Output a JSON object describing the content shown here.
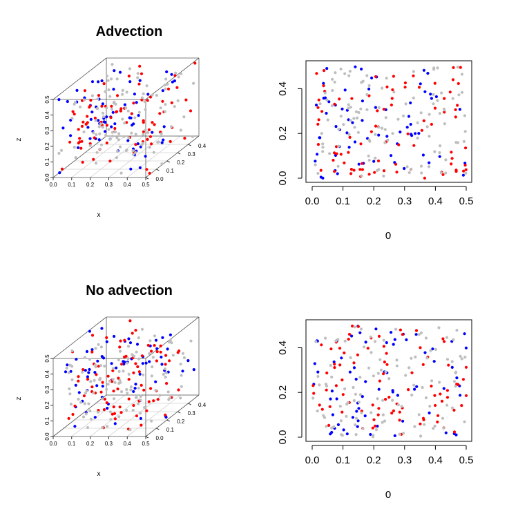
{
  "figure": {
    "colors": {
      "series_a": "#0000ff",
      "series_b": "#ff0000",
      "series_c": "#bebebe",
      "frame": "#000000",
      "box": "#555555",
      "grid": "#d3d3d3"
    }
  },
  "chart_data": [
    {
      "type": "scatter",
      "subtype": "scatter3d",
      "title": "Advection",
      "xlabel": "x",
      "ylabel": "",
      "zlabel": "z",
      "xlim": [
        0,
        0.5
      ],
      "ylim": [
        0,
        0.5
      ],
      "zlim": [
        0,
        0.5
      ],
      "x_ticks": [
        "0.0",
        "0.1",
        "0.2",
        "0.3",
        "0.4",
        "0.5"
      ],
      "y_ticks": [
        "0.0",
        "0.1",
        "0.2",
        "0.3",
        "0.4"
      ],
      "z_ticks": [
        "0.0",
        "0.1",
        "0.2",
        "0.3",
        "0.4",
        "0.5"
      ],
      "grid": true,
      "series": [
        {
          "color": "blue",
          "n_points": 70,
          "seed": 11
        },
        {
          "color": "red",
          "n_points": 85,
          "seed": 23
        },
        {
          "color": "gray",
          "n_points": 110,
          "seed": 37
        }
      ]
    },
    {
      "type": "scatter",
      "title": "",
      "xlabel": "0",
      "ylabel": "",
      "xlim": [
        0,
        0.5
      ],
      "ylim": [
        0,
        0.5
      ],
      "x_ticks": [
        "0.0",
        "0.1",
        "0.2",
        "0.3",
        "0.4",
        "0.5"
      ],
      "y_ticks": [
        "0.0",
        "0.2",
        "0.4"
      ],
      "grid": false,
      "series": [
        {
          "color": "blue",
          "n_points": 70,
          "seed": 11
        },
        {
          "color": "red",
          "n_points": 85,
          "seed": 23
        },
        {
          "color": "gray",
          "n_points": 110,
          "seed": 37
        }
      ]
    },
    {
      "type": "scatter",
      "subtype": "scatter3d",
      "title": "No advection",
      "xlabel": "x",
      "ylabel": "",
      "zlabel": "z",
      "xlim": [
        0,
        0.5
      ],
      "ylim": [
        0,
        0.5
      ],
      "zlim": [
        0,
        0.5
      ],
      "x_ticks": [
        "0.0",
        "0.1",
        "0.2",
        "0.3",
        "0.4",
        "0.5"
      ],
      "y_ticks": [
        "0.0",
        "0.1",
        "0.2",
        "0.3",
        "0.4"
      ],
      "z_ticks": [
        "0.0",
        "0.1",
        "0.2",
        "0.3",
        "0.4",
        "0.5"
      ],
      "grid": true,
      "series": [
        {
          "color": "blue",
          "n_points": 70,
          "seed": 51
        },
        {
          "color": "red",
          "n_points": 85,
          "seed": 63
        },
        {
          "color": "gray",
          "n_points": 110,
          "seed": 79
        }
      ]
    },
    {
      "type": "scatter",
      "title": "",
      "xlabel": "0",
      "ylabel": "",
      "xlim": [
        0,
        0.5
      ],
      "ylim": [
        0,
        0.5
      ],
      "x_ticks": [
        "0.0",
        "0.1",
        "0.2",
        "0.3",
        "0.4",
        "0.5"
      ],
      "y_ticks": [
        "0.0",
        "0.2",
        "0.4"
      ],
      "grid": false,
      "series": [
        {
          "color": "blue",
          "n_points": 70,
          "seed": 51
        },
        {
          "color": "red",
          "n_points": 85,
          "seed": 63
        },
        {
          "color": "gray",
          "n_points": 110,
          "seed": 79
        }
      ]
    }
  ]
}
